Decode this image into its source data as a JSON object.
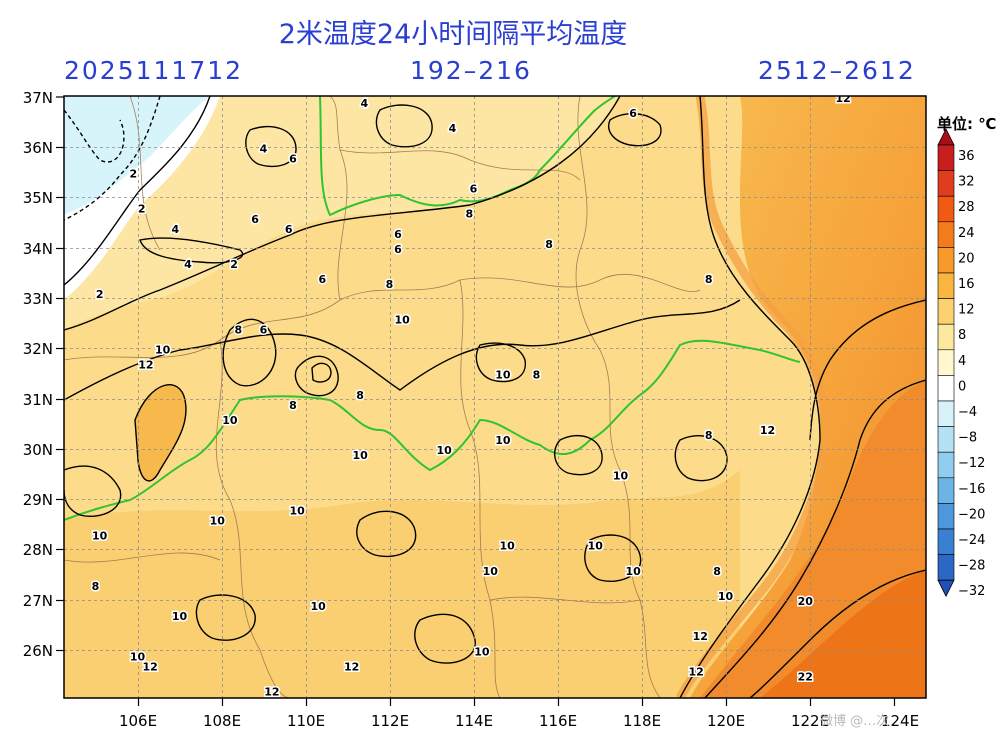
{
  "header": {
    "title": "2米温度24小时间隔平均温度",
    "init_time": "2025111712",
    "forecast_hours": "192–216",
    "valid_dates": "2512–2612"
  },
  "axes": {
    "lon_labels": [
      "106E",
      "108E",
      "110E",
      "112E",
      "114E",
      "116E",
      "118E",
      "120E",
      "122E",
      "124E"
    ],
    "lat_labels": [
      "37N",
      "36N",
      "35N",
      "34N",
      "33N",
      "32N",
      "31N",
      "30N",
      "29N",
      "28N",
      "27N",
      "26N"
    ]
  },
  "colorbar": {
    "unit_label": "单位: ℃",
    "levels": [
      "36",
      "32",
      "28",
      "24",
      "20",
      "16",
      "12",
      "8",
      "4",
      "0",
      "−4",
      "−8",
      "−12",
      "−16",
      "−20",
      "−24",
      "−28",
      "−32"
    ],
    "colors": [
      "#a50f15",
      "#c81e1e",
      "#e03c1e",
      "#f05a14",
      "#f47b1a",
      "#f69a2a",
      "#f8b640",
      "#fbd070",
      "#fde8a0",
      "#fff7d0",
      "#ffffff",
      "#d8f2fa",
      "#b4e2f4",
      "#90cdee",
      "#6cb4e6",
      "#4d98dc",
      "#3a80d2",
      "#2c68c6",
      "#2050b8"
    ]
  },
  "contour_labels": [
    {
      "text": "4",
      "lon": 111.4,
      "lat": 36.8
    },
    {
      "text": "4",
      "lon": 109.0,
      "lat": 35.9
    },
    {
      "text": "6",
      "lon": 109.7,
      "lat": 35.7
    },
    {
      "text": "4",
      "lon": 113.5,
      "lat": 36.3
    },
    {
      "text": "6",
      "lon": 117.8,
      "lat": 36.6
    },
    {
      "text": "12",
      "lon": 122.8,
      "lat": 36.9
    },
    {
      "text": "2",
      "lon": 105.9,
      "lat": 35.4
    },
    {
      "text": "2",
      "lon": 106.1,
      "lat": 34.7
    },
    {
      "text": "4",
      "lon": 106.9,
      "lat": 34.3
    },
    {
      "text": "4",
      "lon": 107.2,
      "lat": 33.6
    },
    {
      "text": "2",
      "lon": 108.3,
      "lat": 33.6
    },
    {
      "text": "2",
      "lon": 105.1,
      "lat": 33.0
    },
    {
      "text": "6",
      "lon": 108.8,
      "lat": 34.5
    },
    {
      "text": "6",
      "lon": 109.6,
      "lat": 34.3
    },
    {
      "text": "6",
      "lon": 114.0,
      "lat": 35.1
    },
    {
      "text": "8",
      "lon": 113.9,
      "lat": 34.6
    },
    {
      "text": "6",
      "lon": 112.2,
      "lat": 34.2
    },
    {
      "text": "6",
      "lon": 112.2,
      "lat": 33.9
    },
    {
      "text": "8",
      "lon": 115.8,
      "lat": 34.0
    },
    {
      "text": "6",
      "lon": 110.4,
      "lat": 33.3
    },
    {
      "text": "8",
      "lon": 112.0,
      "lat": 33.2
    },
    {
      "text": "8",
      "lon": 119.6,
      "lat": 33.3
    },
    {
      "text": "10",
      "lon": 112.3,
      "lat": 32.5
    },
    {
      "text": "8",
      "lon": 108.4,
      "lat": 32.3
    },
    {
      "text": "6",
      "lon": 109.0,
      "lat": 32.3
    },
    {
      "text": "10",
      "lon": 106.6,
      "lat": 31.9
    },
    {
      "text": "12",
      "lon": 106.2,
      "lat": 31.6
    },
    {
      "text": "10",
      "lon": 114.7,
      "lat": 31.4
    },
    {
      "text": "8",
      "lon": 115.5,
      "lat": 31.4
    },
    {
      "text": "8",
      "lon": 111.3,
      "lat": 31.0
    },
    {
      "text": "8",
      "lon": 109.7,
      "lat": 30.8
    },
    {
      "text": "10",
      "lon": 108.2,
      "lat": 30.5
    },
    {
      "text": "10",
      "lon": 111.3,
      "lat": 29.8
    },
    {
      "text": "10",
      "lon": 113.3,
      "lat": 29.9
    },
    {
      "text": "10",
      "lon": 114.7,
      "lat": 30.1
    },
    {
      "text": "8",
      "lon": 119.6,
      "lat": 30.2
    },
    {
      "text": "12",
      "lon": 121.0,
      "lat": 30.3
    },
    {
      "text": "10",
      "lon": 117.5,
      "lat": 29.4
    },
    {
      "text": "10",
      "lon": 109.8,
      "lat": 28.7
    },
    {
      "text": "10",
      "lon": 107.9,
      "lat": 28.5
    },
    {
      "text": "10",
      "lon": 105.1,
      "lat": 28.2
    },
    {
      "text": "10",
      "lon": 114.8,
      "lat": 28.0
    },
    {
      "text": "10",
      "lon": 116.9,
      "lat": 28.0
    },
    {
      "text": "10",
      "lon": 114.4,
      "lat": 27.5
    },
    {
      "text": "10",
      "lon": 117.8,
      "lat": 27.5
    },
    {
      "text": "8",
      "lon": 119.8,
      "lat": 27.5
    },
    {
      "text": "8",
      "lon": 105.0,
      "lat": 27.2
    },
    {
      "text": "10",
      "lon": 120.0,
      "lat": 27.0
    },
    {
      "text": "20",
      "lon": 121.9,
      "lat": 26.9
    },
    {
      "text": "10",
      "lon": 110.3,
      "lat": 26.8
    },
    {
      "text": "10",
      "lon": 107.0,
      "lat": 26.6
    },
    {
      "text": "12",
      "lon": 119.4,
      "lat": 26.2
    },
    {
      "text": "10",
      "lon": 106.0,
      "lat": 25.8
    },
    {
      "text": "10",
      "lon": 114.2,
      "lat": 25.9
    },
    {
      "text": "12",
      "lon": 106.3,
      "lat": 25.6
    },
    {
      "text": "12",
      "lon": 111.1,
      "lat": 25.6
    },
    {
      "text": "12",
      "lon": 119.3,
      "lat": 25.5
    },
    {
      "text": "22",
      "lon": 121.9,
      "lat": 25.4
    },
    {
      "text": "12",
      "lon": 109.2,
      "lat": 25.1
    }
  ],
  "watermark": "微博 @…次"
}
